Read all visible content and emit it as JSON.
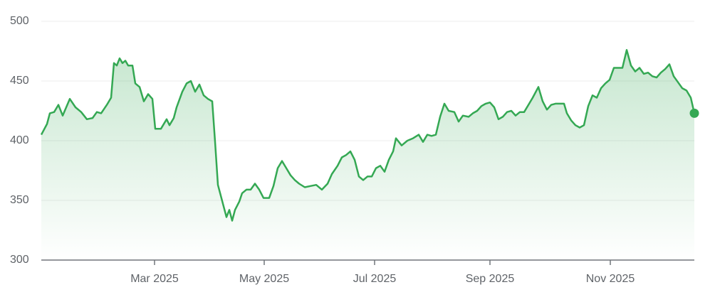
{
  "chart_data": {
    "type": "area",
    "series": [
      {
        "color": "#34a853",
        "x": [
          0,
          8,
          12,
          18,
          24,
          30,
          40,
          48,
          56,
          64,
          72,
          78,
          84,
          92,
          98,
          102,
          106,
          110,
          114,
          118,
          122,
          128,
          132,
          138,
          144,
          150,
          156,
          160,
          168,
          176,
          180,
          186,
          190,
          198,
          204,
          210,
          216,
          222,
          228,
          234,
          240,
          244,
          248,
          252,
          256,
          260,
          264,
          268,
          272,
          278,
          282,
          288,
          294,
          300,
          306,
          312,
          320,
          326,
          332,
          338,
          344,
          350,
          356,
          362,
          370,
          378,
          386,
          394,
          402,
          408,
          416,
          422,
          428,
          434,
          440,
          446,
          452,
          458,
          464,
          470,
          476,
          482,
          488,
          494,
          498,
          506,
          514,
          522,
          530,
          536,
          542,
          548,
          554,
          560,
          566,
          572,
          580,
          586,
          592,
          600,
          606,
          612,
          618,
          624,
          630,
          636,
          642,
          648,
          654,
          660,
          666,
          672,
          678,
          684,
          690,
          698,
          704,
          710,
          716,
          722,
          728,
          734,
          738,
          744,
          750,
          756,
          762,
          768,
          774,
          780,
          786,
          792,
          798,
          804,
          810,
          816,
          822,
          828,
          834,
          840,
          846,
          852,
          858,
          864,
          870,
          876,
          882,
          888,
          894,
          900,
          906,
          912,
          917
        ],
        "values": [
          405,
          414,
          423,
          424,
          430,
          421,
          435,
          428,
          424,
          418,
          419,
          424,
          423,
          430,
          436,
          465,
          463,
          469,
          465,
          467,
          463,
          463,
          448,
          445,
          433,
          439,
          435,
          410,
          410,
          418,
          413,
          419,
          428,
          441,
          448,
          450,
          441,
          447,
          438,
          435,
          433,
          399,
          363,
          354,
          345,
          336,
          342,
          333,
          342,
          349,
          356,
          359,
          359,
          364,
          359,
          352,
          352,
          362,
          377,
          383,
          377,
          371,
          367,
          364,
          361,
          362,
          363,
          359,
          364,
          372,
          379,
          386,
          388,
          391,
          384,
          370,
          367,
          370,
          370,
          377,
          379,
          374,
          384,
          391,
          402,
          396,
          400,
          402,
          405,
          399,
          405,
          404,
          405,
          420,
          431,
          425,
          424,
          416,
          421,
          420,
          423,
          425,
          429,
          431,
          432,
          428,
          418,
          420,
          424,
          425,
          421,
          424,
          424,
          430,
          436,
          445,
          433,
          426,
          430,
          431,
          431,
          431,
          423,
          417,
          413,
          411,
          413,
          429,
          438,
          436,
          444,
          448,
          451,
          461,
          461,
          461,
          476,
          463,
          458,
          461,
          456,
          457,
          454,
          453,
          457,
          460,
          464,
          454,
          449,
          444,
          442,
          436,
          423
        ]
      }
    ],
    "xlim": [
      0,
      917
    ],
    "xticks": [
      {
        "value": 159,
        "label": "Mar 2025"
      },
      {
        "value": 313,
        "label": "May 2025"
      },
      {
        "value": 468,
        "label": "Jul 2025"
      },
      {
        "value": 630,
        "label": "Sep 2025"
      },
      {
        "value": 799,
        "label": "Nov 2025"
      }
    ],
    "ylim": [
      300,
      500
    ],
    "yticks": [
      300,
      350,
      400,
      450,
      500
    ],
    "grid": true
  }
}
